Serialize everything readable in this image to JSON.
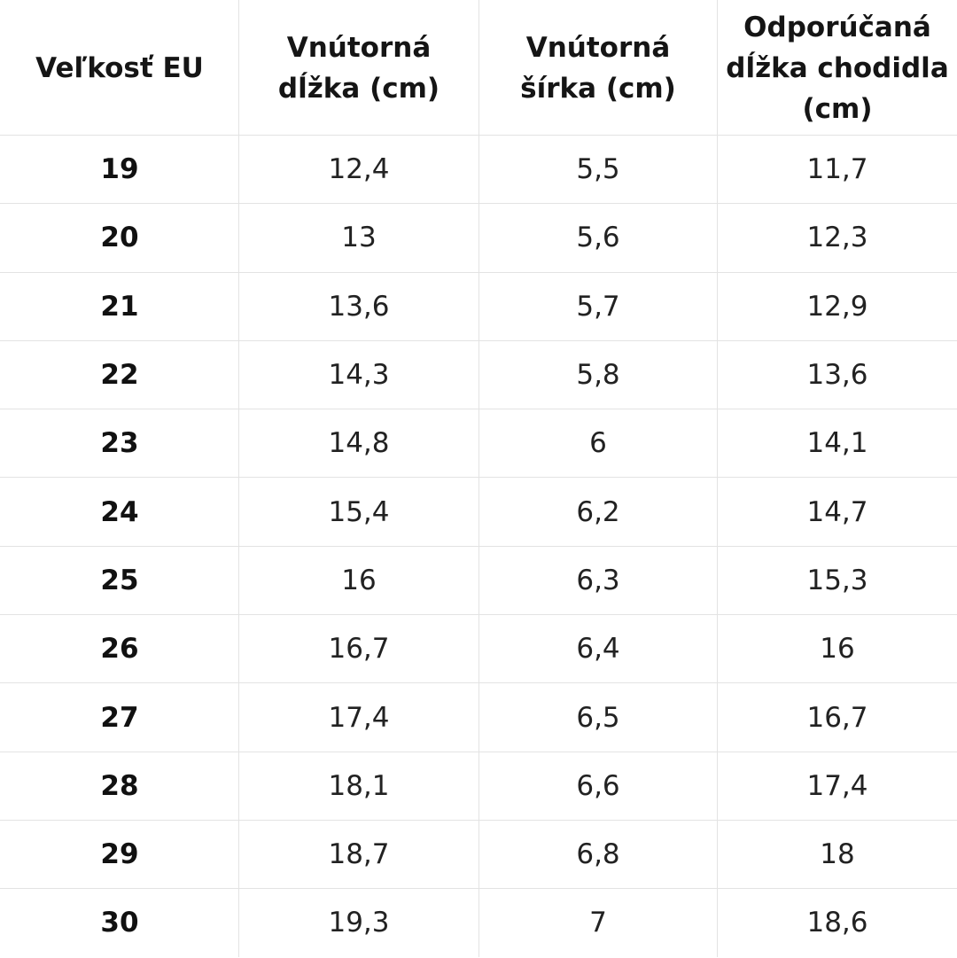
{
  "table": {
    "columns": [
      "Veľkosť EU",
      "Vnútorná dĺžka (cm)",
      "Vnútorná šírka (cm)",
      "Odporúčaná dĺžka chodidla (cm)"
    ],
    "rows": [
      [
        "19",
        "12,4",
        "5,5",
        "11,7"
      ],
      [
        "20",
        "13",
        "5,6",
        "12,3"
      ],
      [
        "21",
        "13,6",
        "5,7",
        "12,9"
      ],
      [
        "22",
        "14,3",
        "5,8",
        "13,6"
      ],
      [
        "23",
        "14,8",
        "6",
        "14,1"
      ],
      [
        "24",
        "15,4",
        "6,2",
        "14,7"
      ],
      [
        "25",
        "16",
        "6,3",
        "15,3"
      ],
      [
        "26",
        "16,7",
        "6,4",
        "16"
      ],
      [
        "27",
        "17,4",
        "6,5",
        "16,7"
      ],
      [
        "28",
        "18,1",
        "6,6",
        "17,4"
      ],
      [
        "29",
        "18,7",
        "6,8",
        "18"
      ],
      [
        "30",
        "19,3",
        "7",
        "18,6"
      ]
    ]
  }
}
